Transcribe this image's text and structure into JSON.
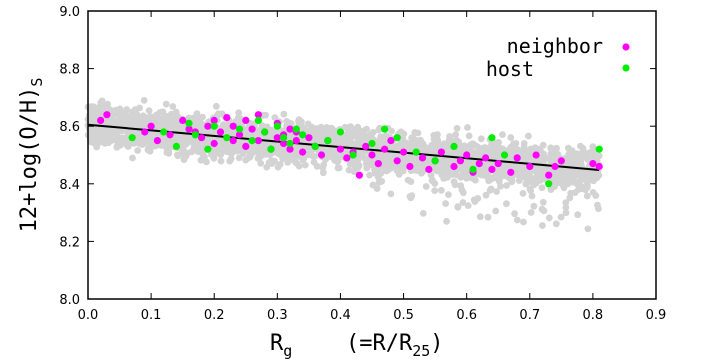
{
  "chart_data": {
    "type": "scatter",
    "xlim": [
      0.0,
      0.9
    ],
    "ylim": [
      8.0,
      9.0
    ],
    "x_ticks": [
      "0.0",
      "0.1",
      "0.2",
      "0.3",
      "0.4",
      "0.5",
      "0.6",
      "0.7",
      "0.8",
      "0.9"
    ],
    "y_ticks": [
      "8.0",
      "8.2",
      "8.4",
      "8.6",
      "8.8",
      "9.0"
    ],
    "ylabel": {
      "main": "12+log(O/H)",
      "sub": "S"
    },
    "xlabel": {
      "main": "R",
      "sub": "g",
      "rest_a": "(=R/R",
      "rest_sub": "25",
      "rest_b": ")"
    },
    "legend_position": "top-right",
    "fit_line": {
      "x": [
        0.0,
        0.81
      ],
      "y": [
        8.605,
        8.448
      ],
      "color": "#000000"
    },
    "background": {
      "color": "#d3d3d3",
      "band": {
        "x_start": 0.0,
        "x_end": 0.81,
        "y_start": 8.605,
        "y_end": 8.448
      }
    },
    "series": [
      {
        "name": "neighbor",
        "color": "#ff00ff",
        "x": [
          0.02,
          0.03,
          0.09,
          0.1,
          0.11,
          0.13,
          0.15,
          0.16,
          0.17,
          0.18,
          0.19,
          0.2,
          0.2,
          0.21,
          0.22,
          0.23,
          0.23,
          0.24,
          0.25,
          0.25,
          0.26,
          0.27,
          0.27,
          0.28,
          0.29,
          0.3,
          0.3,
          0.31,
          0.31,
          0.32,
          0.32,
          0.33,
          0.33,
          0.34,
          0.35,
          0.36,
          0.37,
          0.38,
          0.4,
          0.41,
          0.42,
          0.43,
          0.44,
          0.45,
          0.46,
          0.47,
          0.48,
          0.49,
          0.5,
          0.51,
          0.53,
          0.54,
          0.55,
          0.56,
          0.58,
          0.59,
          0.6,
          0.61,
          0.62,
          0.63,
          0.64,
          0.65,
          0.67,
          0.68,
          0.7,
          0.71,
          0.73,
          0.74,
          0.75,
          0.8,
          0.81
        ],
        "y": [
          8.62,
          8.64,
          8.58,
          8.6,
          8.55,
          8.57,
          8.62,
          8.59,
          8.58,
          8.56,
          8.6,
          8.62,
          8.54,
          8.58,
          8.63,
          8.55,
          8.6,
          8.57,
          8.53,
          8.62,
          8.59,
          8.64,
          8.55,
          8.58,
          8.52,
          8.56,
          8.61,
          8.57,
          8.54,
          8.59,
          8.52,
          8.55,
          8.58,
          8.51,
          8.56,
          8.53,
          8.5,
          8.55,
          8.52,
          8.49,
          8.51,
          8.43,
          8.53,
          8.5,
          8.47,
          8.52,
          8.55,
          8.48,
          8.51,
          8.46,
          8.49,
          8.45,
          8.48,
          8.51,
          8.46,
          8.48,
          8.5,
          8.44,
          8.47,
          8.49,
          8.45,
          8.47,
          8.44,
          8.49,
          8.46,
          8.5,
          8.43,
          8.46,
          8.48,
          8.47,
          8.46
        ]
      },
      {
        "name": "host",
        "color": "#00ee00",
        "x": [
          0.07,
          0.12,
          0.14,
          0.16,
          0.17,
          0.19,
          0.2,
          0.22,
          0.24,
          0.26,
          0.27,
          0.28,
          0.29,
          0.3,
          0.31,
          0.32,
          0.33,
          0.34,
          0.36,
          0.38,
          0.4,
          0.42,
          0.45,
          0.47,
          0.49,
          0.52,
          0.55,
          0.58,
          0.61,
          0.64,
          0.66,
          0.73,
          0.81
        ],
        "y": [
          8.56,
          8.58,
          8.53,
          8.61,
          8.57,
          8.52,
          8.6,
          8.56,
          8.59,
          8.55,
          8.62,
          8.58,
          8.52,
          8.6,
          8.56,
          8.54,
          8.59,
          8.57,
          8.53,
          8.55,
          8.58,
          8.5,
          8.54,
          8.59,
          8.56,
          8.51,
          8.48,
          8.53,
          8.45,
          8.56,
          8.5,
          8.4,
          8.52
        ]
      }
    ]
  }
}
